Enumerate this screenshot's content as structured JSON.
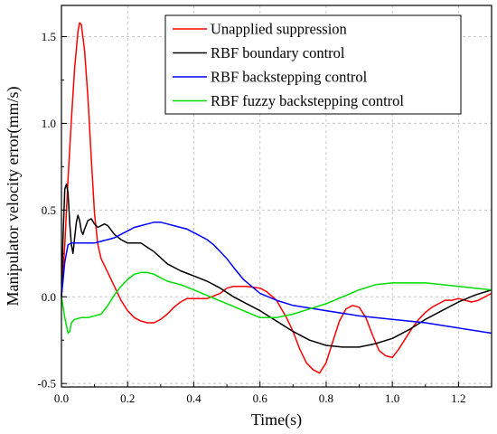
{
  "chart_data": {
    "type": "line",
    "title": "",
    "xlabel": "Time(s)",
    "ylabel": "Manipulator velocity error(mm/s)",
    "xlim": [
      0,
      1.3
    ],
    "ylim": [
      -0.52,
      1.68
    ],
    "x_ticks": [
      0.0,
      0.2,
      0.4,
      0.6,
      0.8,
      1.0,
      1.2
    ],
    "x_tick_labels": [
      "0.0",
      "0.2",
      "0.4",
      "0.6",
      "0.8",
      "1.0",
      "1.2"
    ],
    "y_ticks": [
      -0.5,
      0.0,
      0.5,
      1.0,
      1.5
    ],
    "y_tick_labels": [
      "-0.5",
      "0.0",
      "0.5",
      "1.0",
      "1.5"
    ],
    "grid": true,
    "legend_position": "top-right",
    "series": [
      {
        "name": "Unapplied suppression",
        "color": "#ff0000",
        "x": [
          0,
          0.01,
          0.02,
          0.03,
          0.04,
          0.05,
          0.055,
          0.06,
          0.07,
          0.08,
          0.09,
          0.1,
          0.11,
          0.12,
          0.14,
          0.16,
          0.18,
          0.2,
          0.22,
          0.24,
          0.26,
          0.28,
          0.3,
          0.32,
          0.34,
          0.36,
          0.38,
          0.4,
          0.44,
          0.48,
          0.5,
          0.52,
          0.56,
          0.6,
          0.62,
          0.65,
          0.68,
          0.7,
          0.72,
          0.74,
          0.76,
          0.78,
          0.8,
          0.82,
          0.84,
          0.86,
          0.88,
          0.9,
          0.92,
          0.94,
          0.96,
          0.98,
          1.0,
          1.02,
          1.04,
          1.06,
          1.08,
          1.1,
          1.12,
          1.14,
          1.16,
          1.18,
          1.2,
          1.22,
          1.24,
          1.26,
          1.28,
          1.3
        ],
        "y": [
          0,
          0.3,
          0.68,
          1.02,
          1.32,
          1.53,
          1.58,
          1.57,
          1.42,
          1.15,
          0.8,
          0.48,
          0.3,
          0.22,
          0.14,
          0.06,
          -0.02,
          -0.08,
          -0.12,
          -0.14,
          -0.15,
          -0.15,
          -0.13,
          -0.1,
          -0.06,
          -0.03,
          -0.01,
          -0.01,
          -0.01,
          0.02,
          0.05,
          0.06,
          0.06,
          0.05,
          0.03,
          -0.02,
          -0.12,
          -0.2,
          -0.3,
          -0.38,
          -0.42,
          -0.44,
          -0.38,
          -0.26,
          -0.14,
          -0.07,
          -0.05,
          -0.06,
          -0.12,
          -0.22,
          -0.31,
          -0.34,
          -0.35,
          -0.3,
          -0.24,
          -0.18,
          -0.13,
          -0.09,
          -0.06,
          -0.04,
          -0.02,
          -0.02,
          -0.01,
          -0.02,
          -0.03,
          -0.02,
          0.0,
          0.02
        ]
      },
      {
        "name": "RBF boundary control",
        "color": "#000000",
        "x": [
          0,
          0.005,
          0.01,
          0.015,
          0.02,
          0.025,
          0.03,
          0.035,
          0.04,
          0.045,
          0.05,
          0.055,
          0.06,
          0.065,
          0.07,
          0.08,
          0.09,
          0.1,
          0.11,
          0.12,
          0.13,
          0.14,
          0.16,
          0.18,
          0.2,
          0.24,
          0.28,
          0.32,
          0.36,
          0.4,
          0.44,
          0.48,
          0.52,
          0.56,
          0.6,
          0.65,
          0.7,
          0.75,
          0.8,
          0.85,
          0.9,
          0.95,
          1.0,
          1.05,
          1.1,
          1.15,
          1.2,
          1.25,
          1.3
        ],
        "y": [
          0,
          0.35,
          0.62,
          0.65,
          0.6,
          0.42,
          0.3,
          0.25,
          0.34,
          0.43,
          0.47,
          0.44,
          0.38,
          0.36,
          0.39,
          0.44,
          0.45,
          0.42,
          0.4,
          0.41,
          0.42,
          0.41,
          0.36,
          0.33,
          0.31,
          0.31,
          0.26,
          0.19,
          0.15,
          0.12,
          0.09,
          0.05,
          0.0,
          -0.04,
          -0.08,
          -0.14,
          -0.2,
          -0.25,
          -0.28,
          -0.29,
          -0.29,
          -0.27,
          -0.24,
          -0.19,
          -0.13,
          -0.08,
          -0.03,
          0.01,
          0.04
        ]
      },
      {
        "name": "RBF backstepping control",
        "color": "#0000ff",
        "x": [
          0,
          0.01,
          0.02,
          0.03,
          0.04,
          0.06,
          0.08,
          0.1,
          0.12,
          0.14,
          0.16,
          0.18,
          0.2,
          0.22,
          0.24,
          0.26,
          0.28,
          0.3,
          0.32,
          0.34,
          0.36,
          0.38,
          0.4,
          0.42,
          0.44,
          0.46,
          0.48,
          0.5,
          0.52,
          0.55,
          0.6,
          0.65,
          0.7,
          0.8,
          0.9,
          1.0,
          1.1,
          1.2,
          1.3
        ],
        "y": [
          0,
          0.2,
          0.3,
          0.31,
          0.31,
          0.31,
          0.31,
          0.31,
          0.32,
          0.33,
          0.34,
          0.36,
          0.38,
          0.4,
          0.41,
          0.42,
          0.43,
          0.43,
          0.42,
          0.41,
          0.4,
          0.39,
          0.37,
          0.35,
          0.33,
          0.3,
          0.26,
          0.22,
          0.17,
          0.1,
          0.02,
          -0.02,
          -0.05,
          -0.08,
          -0.11,
          -0.13,
          -0.15,
          -0.18,
          -0.21
        ]
      },
      {
        "name": "RBF fuzzy backstepping control",
        "color": "#00dd00",
        "x": [
          0,
          0.01,
          0.02,
          0.025,
          0.03,
          0.04,
          0.06,
          0.08,
          0.1,
          0.12,
          0.14,
          0.16,
          0.18,
          0.2,
          0.22,
          0.24,
          0.26,
          0.28,
          0.3,
          0.32,
          0.36,
          0.4,
          0.45,
          0.5,
          0.55,
          0.6,
          0.65,
          0.7,
          0.75,
          0.8,
          0.85,
          0.9,
          0.95,
          1.0,
          1.05,
          1.1,
          1.15,
          1.2,
          1.25,
          1.3
        ],
        "y": [
          0,
          -0.12,
          -0.21,
          -0.2,
          -0.15,
          -0.13,
          -0.12,
          -0.12,
          -0.11,
          -0.1,
          -0.05,
          0.01,
          0.06,
          0.1,
          0.13,
          0.14,
          0.14,
          0.13,
          0.11,
          0.09,
          0.07,
          0.04,
          0.0,
          -0.04,
          -0.08,
          -0.12,
          -0.12,
          -0.1,
          -0.07,
          -0.04,
          0.0,
          0.04,
          0.07,
          0.08,
          0.08,
          0.08,
          0.07,
          0.06,
          0.05,
          0.04
        ]
      }
    ]
  }
}
